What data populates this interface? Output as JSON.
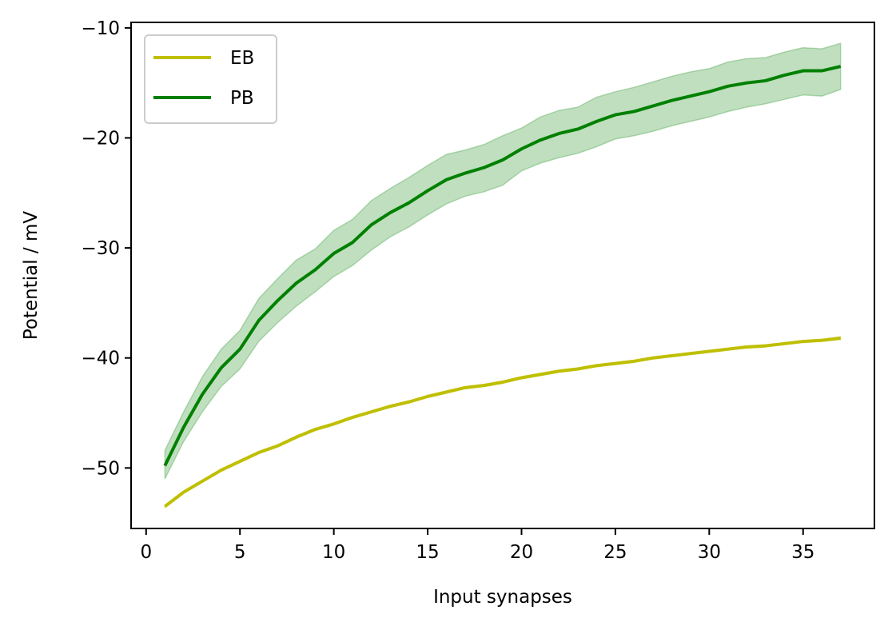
{
  "chart_data": {
    "type": "line",
    "title": "",
    "xlabel": "Input synapses",
    "ylabel": "Potential / mV",
    "xlim": [
      -0.8,
      38.8
    ],
    "ylim": [
      -55.5,
      -9.5
    ],
    "xticks": [
      0,
      5,
      10,
      15,
      20,
      25,
      30,
      35
    ],
    "yticks": [
      -50,
      -40,
      -30,
      -20,
      -10
    ],
    "xtick_labels": [
      "0",
      "5",
      "10",
      "15",
      "20",
      "25",
      "30",
      "35"
    ],
    "ytick_labels": [
      "−50",
      "−40",
      "−30",
      "−20",
      "−10"
    ],
    "grid": false,
    "legend_position": "top-left",
    "x": [
      1,
      2,
      3,
      4,
      5,
      6,
      7,
      8,
      9,
      10,
      11,
      12,
      13,
      14,
      15,
      16,
      17,
      18,
      19,
      20,
      21,
      22,
      23,
      24,
      25,
      26,
      27,
      28,
      29,
      30,
      31,
      32,
      33,
      34,
      35,
      36,
      37
    ],
    "series": [
      {
        "name": "EB",
        "color": "#bfbf00",
        "values": [
          -53.5,
          -52.2,
          -51.2,
          -50.2,
          -49.4,
          -48.6,
          -48.0,
          -47.2,
          -46.5,
          -46.0,
          -45.4,
          -44.9,
          -44.4,
          -44.0,
          -43.5,
          -43.1,
          -42.7,
          -42.5,
          -42.2,
          -41.8,
          -41.5,
          -41.2,
          -41.0,
          -40.7,
          -40.5,
          -40.3,
          -40.0,
          -39.8,
          -39.6,
          -39.4,
          -39.2,
          -39.0,
          -38.9,
          -38.7,
          -38.5,
          -38.4,
          -38.2
        ],
        "lower": [
          -53.6,
          -52.3,
          -51.3,
          -50.3,
          -49.5,
          -48.7,
          -48.1,
          -47.3,
          -46.6,
          -46.1,
          -45.5,
          -45.0,
          -44.5,
          -44.1,
          -43.6,
          -43.2,
          -42.8,
          -42.6,
          -42.3,
          -41.9,
          -41.6,
          -41.3,
          -41.1,
          -40.8,
          -40.6,
          -40.4,
          -40.1,
          -39.9,
          -39.7,
          -39.5,
          -39.3,
          -39.1,
          -39.0,
          -38.8,
          -38.6,
          -38.5,
          -38.35
        ],
        "upper": [
          -53.4,
          -52.1,
          -51.1,
          -50.1,
          -49.3,
          -48.5,
          -47.9,
          -47.1,
          -46.4,
          -45.9,
          -45.3,
          -44.8,
          -44.3,
          -43.9,
          -43.4,
          -43.0,
          -42.6,
          -42.4,
          -42.1,
          -41.7,
          -41.4,
          -41.1,
          -40.9,
          -40.6,
          -40.4,
          -40.2,
          -39.9,
          -39.7,
          -39.5,
          -39.3,
          -39.1,
          -38.9,
          -38.8,
          -38.6,
          -38.4,
          -38.3,
          -38.05
        ]
      },
      {
        "name": "PB",
        "color": "#008000",
        "values": [
          -49.8,
          -46.3,
          -43.3,
          -40.9,
          -39.2,
          -36.6,
          -34.8,
          -33.2,
          -32.0,
          -30.5,
          -29.5,
          -27.9,
          -26.8,
          -25.9,
          -24.8,
          -23.8,
          -23.2,
          -22.7,
          -22.0,
          -21.0,
          -20.2,
          -19.6,
          -19.2,
          -18.5,
          -17.9,
          -17.6,
          -17.1,
          -16.6,
          -16.2,
          -15.8,
          -15.3,
          -15.0,
          -14.8,
          -14.3,
          -13.9,
          -13.9,
          -13.5
        ],
        "lower": [
          -51.0,
          -47.6,
          -44.9,
          -42.6,
          -41.0,
          -38.5,
          -36.8,
          -35.3,
          -34.0,
          -32.6,
          -31.6,
          -30.2,
          -29.0,
          -28.1,
          -27.0,
          -26.0,
          -25.3,
          -24.9,
          -24.3,
          -23.0,
          -22.3,
          -21.8,
          -21.4,
          -20.8,
          -20.1,
          -19.8,
          -19.4,
          -18.9,
          -18.5,
          -18.1,
          -17.6,
          -17.2,
          -16.9,
          -16.5,
          -16.1,
          -16.2,
          -15.6
        ],
        "upper": [
          -48.4,
          -44.9,
          -41.7,
          -39.2,
          -37.5,
          -34.6,
          -32.8,
          -31.1,
          -30.1,
          -28.4,
          -27.4,
          -25.7,
          -24.6,
          -23.6,
          -22.5,
          -21.5,
          -21.1,
          -20.6,
          -19.8,
          -19.1,
          -18.1,
          -17.5,
          -17.2,
          -16.3,
          -15.8,
          -15.4,
          -14.9,
          -14.4,
          -14.0,
          -13.7,
          -13.1,
          -12.8,
          -12.7,
          -12.2,
          -11.8,
          -11.9,
          -11.4
        ]
      }
    ]
  }
}
